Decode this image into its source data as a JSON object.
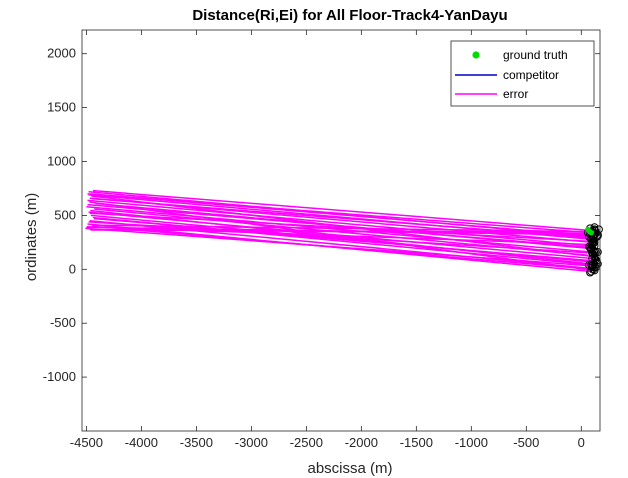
{
  "chart_data": {
    "type": "scatter",
    "title": "Distance(Ri,Ei) for All Floor-Track4-YanDayu",
    "xlabel": "abscissa (m)",
    "ylabel": "ordinates (m)",
    "xlim": [
      -4540,
      170
    ],
    "ylim": [
      -1500,
      2220
    ],
    "xticks": [
      -4500,
      -4000,
      -3500,
      -3000,
      -2500,
      -2000,
      -1500,
      -1000,
      -500,
      0
    ],
    "yticks": [
      -1000,
      -500,
      0,
      500,
      1000,
      1500,
      2000
    ],
    "xtick_labels": [
      "-4500",
      "-4000",
      "-3500",
      "-3000",
      "-2500",
      "-2000",
      "-1500",
      "-1000",
      "-500",
      "0"
    ],
    "ytick_labels": [
      "-1000",
      "-500",
      "0",
      "500",
      "1000",
      "1500",
      "2000"
    ],
    "grid": false,
    "legend_position": "top-right",
    "legend": [
      "ground truth",
      "competitor",
      "error"
    ],
    "colors": {
      "ground_truth": "#00dd00",
      "competitor": "#0000cc",
      "error": "#ff00ff",
      "estimates": "#000000"
    },
    "series": [
      {
        "name": "ground truth",
        "marker": "dot",
        "points": [
          [
            60,
            370
          ],
          [
            75,
            350
          ],
          [
            90,
            340
          ]
        ]
      },
      {
        "name": "competitor",
        "style": "line",
        "points": []
      },
      {
        "name": "error",
        "style": "line",
        "segments": [
          [
            [
              -4460,
              700
            ],
            [
              100,
              310
            ]
          ],
          [
            [
              -4480,
              690
            ],
            [
              80,
              280
            ]
          ],
          [
            [
              -4470,
              660
            ],
            [
              110,
              250
            ]
          ],
          [
            [
              -4490,
              640
            ],
            [
              70,
              220
            ]
          ],
          [
            [
              -4420,
              610
            ],
            [
              120,
              190
            ]
          ],
          [
            [
              -4500,
              580
            ],
            [
              90,
              160
            ]
          ],
          [
            [
              -4430,
              560
            ],
            [
              60,
              130
            ]
          ],
          [
            [
              -4480,
              530
            ],
            [
              100,
              100
            ]
          ],
          [
            [
              -4460,
              500
            ],
            [
              80,
              70
            ]
          ],
          [
            [
              -4440,
              480
            ],
            [
              110,
              40
            ]
          ],
          [
            [
              -4470,
              450
            ],
            [
              70,
              10
            ]
          ],
          [
            [
              -4490,
              420
            ],
            [
              90,
              -20
            ]
          ],
          [
            [
              -4450,
              400
            ],
            [
              100,
              0
            ]
          ],
          [
            [
              -4510,
              380
            ],
            [
              120,
              30
            ]
          ],
          [
            [
              -4470,
              370
            ],
            [
              60,
              330
            ]
          ],
          [
            [
              -4440,
              730
            ],
            [
              90,
              360
            ]
          ],
          [
            [
              -4480,
              720
            ],
            [
              110,
              300
            ]
          ],
          [
            [
              -4490,
              700
            ],
            [
              80,
              340
            ]
          ],
          [
            [
              -4450,
              410
            ],
            [
              100,
              350
            ]
          ],
          [
            [
              -4500,
              390
            ],
            [
              70,
              320
            ]
          ],
          [
            [
              -4460,
              365
            ],
            [
              100,
              345
            ]
          ],
          [
            [
              -4490,
              600
            ],
            [
              120,
              200
            ]
          ],
          [
            [
              -4430,
              470
            ],
            [
              90,
              80
            ]
          ],
          [
            [
              -4470,
              520
            ],
            [
              60,
              260
            ]
          ],
          [
            [
              -4480,
              440
            ],
            [
              110,
              150
            ]
          ],
          [
            [
              -4455,
              680
            ],
            [
              95,
              120
            ]
          ],
          [
            [
              -4465,
              545
            ],
            [
              85,
              50
            ]
          ],
          [
            [
              -4475,
              625
            ],
            [
              105,
              -10
            ]
          ],
          [
            [
              -4495,
              395
            ],
            [
              75,
              230
            ]
          ],
          [
            [
              -4445,
              655
            ],
            [
              115,
              290
            ]
          ]
        ]
      },
      {
        "name": "estimates",
        "style": "loop-track",
        "points": [
          [
            80,
            380
          ],
          [
            120,
            360
          ],
          [
            140,
            300
          ],
          [
            110,
            240
          ],
          [
            90,
            180
          ],
          [
            120,
            120
          ],
          [
            140,
            60
          ],
          [
            110,
            0
          ],
          [
            80,
            -30
          ],
          [
            100,
            20
          ],
          [
            130,
            90
          ],
          [
            100,
            150
          ],
          [
            70,
            210
          ],
          [
            100,
            270
          ],
          [
            130,
            330
          ],
          [
            160,
            370
          ],
          [
            150,
            320
          ],
          [
            110,
            260
          ],
          [
            80,
            200
          ],
          [
            110,
            140
          ],
          [
            140,
            80
          ],
          [
            130,
            20
          ],
          [
            90,
            -20
          ],
          [
            70,
            40
          ],
          [
            100,
            100
          ],
          [
            130,
            160
          ],
          [
            100,
            230
          ],
          [
            70,
            300
          ],
          [
            90,
            350
          ],
          [
            120,
            390
          ],
          [
            60,
            340
          ],
          [
            90,
            280
          ],
          [
            120,
            220
          ],
          [
            150,
            160
          ],
          [
            120,
            100
          ],
          [
            90,
            40
          ],
          [
            120,
            -10
          ],
          [
            150,
            50
          ],
          [
            120,
            120
          ],
          [
            90,
            190
          ],
          [
            120,
            250
          ],
          [
            150,
            310
          ],
          [
            120,
            370
          ],
          [
            80,
            330
          ]
        ]
      }
    ]
  }
}
